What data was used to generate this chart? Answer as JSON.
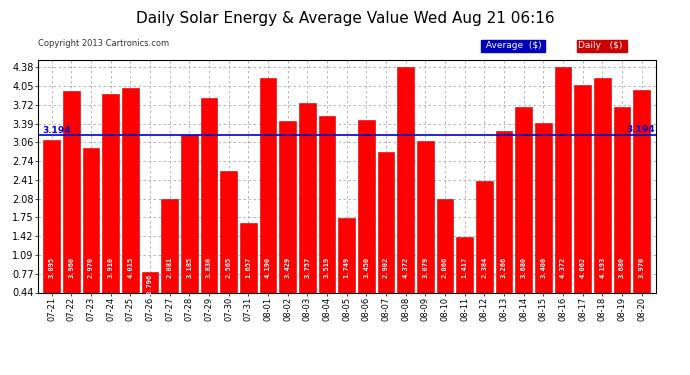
{
  "title": "Daily Solar Energy & Average Value Wed Aug 21 06:16",
  "copyright": "Copyright 2013 Cartronics.com",
  "categories": [
    "07-21",
    "07-22",
    "07-23",
    "07-24",
    "07-25",
    "07-26",
    "07-27",
    "07-28",
    "07-29",
    "07-30",
    "07-31",
    "08-01",
    "08-02",
    "08-03",
    "08-04",
    "08-05",
    "08-06",
    "08-07",
    "08-08",
    "08-09",
    "08-10",
    "08-11",
    "08-12",
    "08-13",
    "08-14",
    "08-15",
    "08-16",
    "08-17",
    "08-18",
    "08-19",
    "08-20"
  ],
  "values": [
    3.095,
    3.96,
    2.97,
    3.91,
    4.015,
    0.796,
    2.081,
    3.185,
    3.83,
    2.565,
    1.657,
    4.19,
    3.429,
    3.757,
    3.519,
    1.749,
    3.45,
    2.902,
    4.372,
    3.079,
    2.066,
    1.417,
    2.384,
    3.266,
    3.68,
    3.4,
    4.372,
    4.062,
    4.193,
    3.68,
    3.97
  ],
  "average": 3.194,
  "bar_color": "#ff0000",
  "bar_edge_color": "#cc0000",
  "average_line_color": "#0000cc",
  "background_color": "#ffffff",
  "grid_color": "#aaaaaa",
  "yticks": [
    0.44,
    0.77,
    1.09,
    1.42,
    1.75,
    2.08,
    2.41,
    2.74,
    3.06,
    3.39,
    3.72,
    4.05,
    4.38
  ],
  "legend_avg_bg": "#0000bb",
  "legend_daily_bg": "#cc0000",
  "title_fontsize": 11,
  "copyright_fontsize": 6,
  "bar_label_fontsize": 5.0,
  "xlabel_fontsize": 6,
  "ylabel_fontsize": 7
}
